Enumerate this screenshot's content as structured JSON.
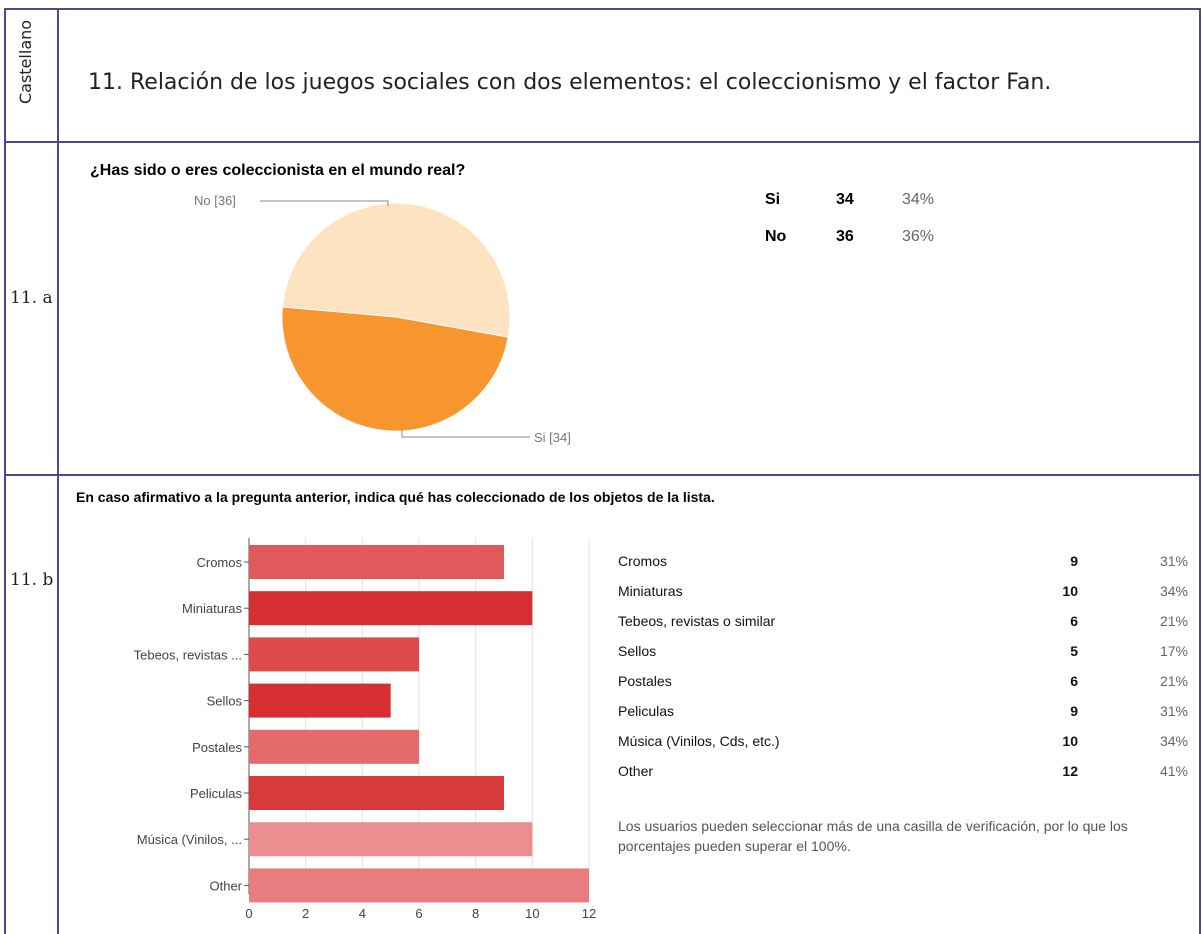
{
  "header": {
    "language": "Castellano",
    "title": "11. Relación de los juegos sociales con dos elementos: el coleccionismo y el factor Fan."
  },
  "rows": [
    {
      "label": "11. a"
    },
    {
      "label": "11. b"
    }
  ],
  "colors": {
    "border": "#4a4a8c",
    "pie_no": "#fde3c1",
    "pie_si": "#f7962f",
    "bars": [
      "#e05a5c",
      "#d62f32",
      "#df4a4c",
      "#d62f32",
      "#e56a6c",
      "#d83a3c",
      "#eb8e90",
      "#e87d7f"
    ]
  },
  "chart_data": [
    {
      "type": "pie",
      "title": "¿Has sido o eres coleccionista en el mundo real?",
      "slices": [
        {
          "name": "No",
          "value": 36,
          "label": "No [36]"
        },
        {
          "name": "Si",
          "value": 34,
          "label": "Si [34]"
        }
      ],
      "table": [
        {
          "name": "Si",
          "count": "34",
          "percent": "34%"
        },
        {
          "name": "No",
          "count": "36",
          "percent": "36%"
        }
      ]
    },
    {
      "type": "bar",
      "orientation": "horizontal",
      "title": "En caso afirmativo a la pregunta anterior, indica qué has coleccionado de los objetos de la lista.",
      "categories": [
        "Cromos",
        "Miniaturas",
        "Tebeos, revistas ...",
        "Sellos",
        "Postales",
        "Peliculas",
        "Música (Vinilos, ...",
        "Other"
      ],
      "values": [
        9,
        10,
        6,
        5,
        6,
        9,
        10,
        12
      ],
      "xlim": [
        0,
        12
      ],
      "xticks": [
        "0",
        "2",
        "4",
        "6",
        "8",
        "10",
        "12"
      ],
      "table": [
        {
          "name": "Cromos",
          "count": "9",
          "percent": "31%"
        },
        {
          "name": "Miniaturas",
          "count": "10",
          "percent": "34%"
        },
        {
          "name": "Tebeos, revistas o similar",
          "count": "6",
          "percent": "21%"
        },
        {
          "name": "Sellos",
          "count": "5",
          "percent": "17%"
        },
        {
          "name": "Postales",
          "count": "6",
          "percent": "21%"
        },
        {
          "name": "Peliculas",
          "count": "9",
          "percent": "31%"
        },
        {
          "name": "Música (Vinilos, Cds, etc.)",
          "count": "10",
          "percent": "34%"
        },
        {
          "name": "Other",
          "count": "12",
          "percent": "41%"
        }
      ],
      "note": "Los usuarios pueden seleccionar más de una casilla de verificación, por lo que los porcentajes pueden superar el 100%."
    }
  ]
}
